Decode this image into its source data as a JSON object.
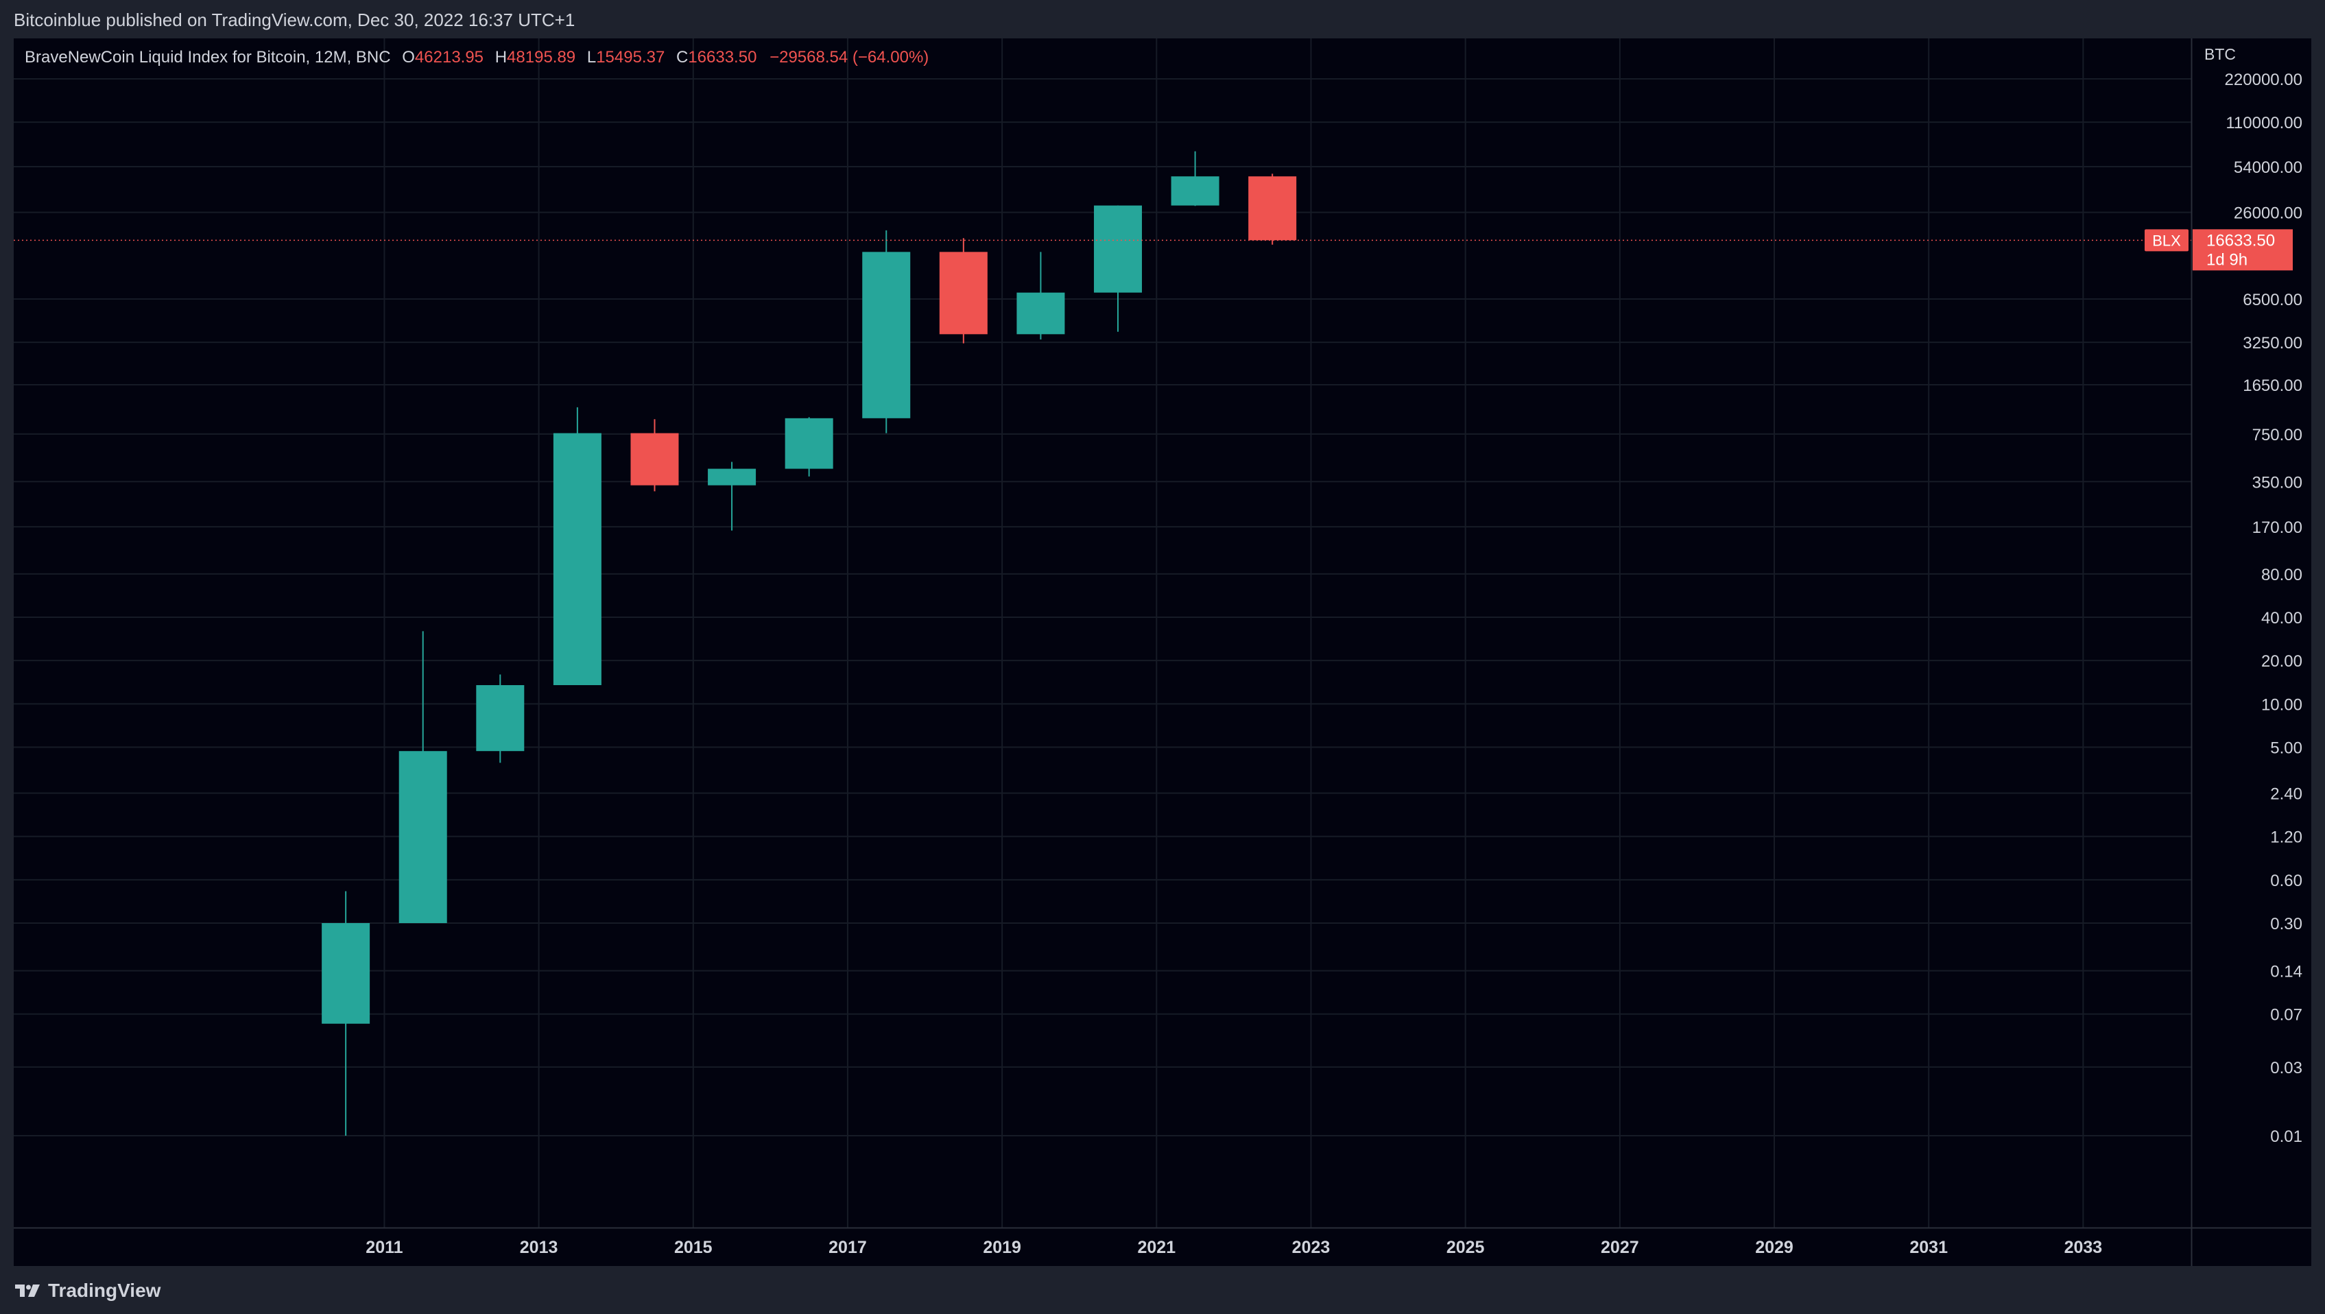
{
  "header": {
    "published": "Bitcoinblue published on TradingView.com, Dec 30, 2022 16:37 UTC+1"
  },
  "legend": {
    "symbol": "BraveNewCoin Liquid Index for Bitcoin, 12M, BNC",
    "o_label": "O",
    "o_value": "46213.95",
    "h_label": "H",
    "h_value": "48195.89",
    "l_label": "L",
    "l_value": "15495.37",
    "c_label": "C",
    "c_value": "16633.50",
    "change": "−29568.54 (−64.00%)"
  },
  "chart_data": {
    "type": "candlestick",
    "title": "BraveNewCoin Liquid Index for Bitcoin, 12M, BNC",
    "currency": "BTC",
    "y_scale": "log",
    "ylim": [
      0.0023,
      420000
    ],
    "xlim": [
      2006.2,
      2034.4
    ],
    "grid": true,
    "y_ticks": [
      220000.0,
      110000.0,
      54000.0,
      26000.0,
      6500.0,
      3250.0,
      1650.0,
      750.0,
      350.0,
      170.0,
      80.0,
      40.0,
      20.0,
      10.0,
      5.0,
      2.4,
      1.2,
      0.6,
      0.3,
      0.14,
      0.07,
      0.03,
      0.01
    ],
    "y_tick_labels": [
      "220000.00",
      "110000.00",
      "54000.00",
      "26000.00",
      "6500.00",
      "3250.00",
      "1650.00",
      "750.00",
      "350.00",
      "170.00",
      "80.00",
      "40.00",
      "20.00",
      "10.00",
      "5.00",
      "2.40",
      "1.20",
      "0.60",
      "0.30",
      "0.14",
      "0.07",
      "0.03",
      "0.01"
    ],
    "x_ticks": [
      2011,
      2013,
      2015,
      2017,
      2019,
      2021,
      2023,
      2025,
      2027,
      2029,
      2031,
      2033
    ],
    "x_tick_labels": [
      "2011",
      "2013",
      "2015",
      "2017",
      "2019",
      "2021",
      "2023",
      "2025",
      "2027",
      "2029",
      "2031",
      "2033"
    ],
    "candles": [
      {
        "year": 2010,
        "open": 0.06,
        "high": 0.5,
        "low": 0.01,
        "close": 0.3
      },
      {
        "year": 2011,
        "open": 0.3,
        "high": 32,
        "low": 0.3,
        "close": 4.7
      },
      {
        "year": 2012,
        "open": 4.7,
        "high": 16,
        "low": 3.9,
        "close": 13.5
      },
      {
        "year": 2013,
        "open": 13.5,
        "high": 1150,
        "low": 13.5,
        "close": 760
      },
      {
        "year": 2014,
        "open": 760,
        "high": 950,
        "low": 300,
        "close": 330
      },
      {
        "year": 2015,
        "open": 330,
        "high": 480,
        "low": 160,
        "close": 430
      },
      {
        "year": 2016,
        "open": 430,
        "high": 980,
        "low": 380,
        "close": 965
      },
      {
        "year": 2017,
        "open": 965,
        "high": 19500,
        "low": 760,
        "close": 13800
      },
      {
        "year": 2018,
        "open": 13800,
        "high": 17200,
        "low": 3200,
        "close": 3700
      },
      {
        "year": 2019,
        "open": 3700,
        "high": 13800,
        "low": 3400,
        "close": 7200
      },
      {
        "year": 2020,
        "open": 7200,
        "high": 29000,
        "low": 3850,
        "close": 29000
      },
      {
        "year": 2021,
        "open": 29000,
        "high": 69000,
        "low": 28800,
        "close": 46213.95
      },
      {
        "year": 2022,
        "open": 46213.95,
        "high": 48195.89,
        "low": 15495.37,
        "close": 16633.5
      }
    ],
    "last_price": {
      "value": 16633.5,
      "label": "16633.50",
      "countdown": "1d 9h",
      "symbol_tag": "BLX"
    }
  },
  "colors": {
    "up": "#26a69a",
    "down": "#ef5350",
    "background": "#02030f",
    "grid": "#161b26",
    "axis_text": "#d1d4dc",
    "price_line": "#ef5350"
  },
  "footer": {
    "brand": "TradingView"
  }
}
